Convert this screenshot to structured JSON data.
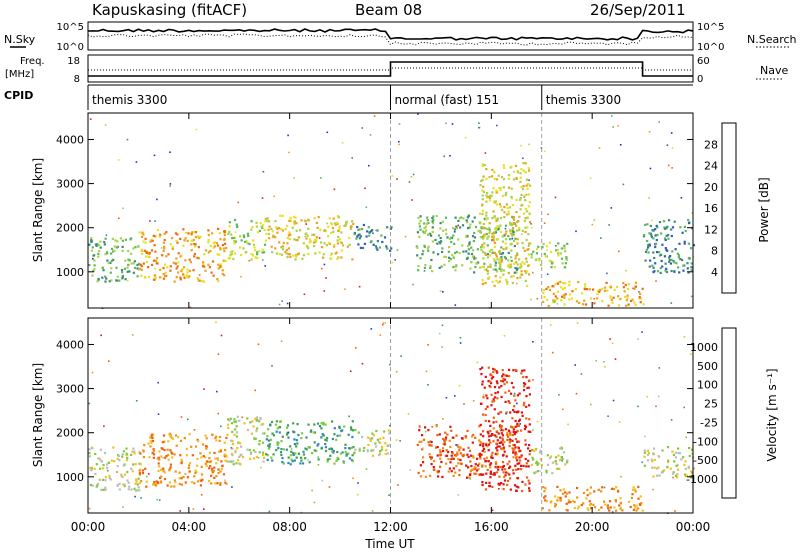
{
  "header": {
    "station": "Kapuskasing (fitACF)",
    "beam": "Beam 08",
    "date": "26/Sep/2011"
  },
  "top_panels": {
    "nsky_label": "N.Sky",
    "nsearch_label": "N.Search",
    "sky_ticks": [
      "10^5",
      "10^0"
    ],
    "sky_right_ticks": [
      "10^5",
      "10^0"
    ],
    "freq_label_1": "Freq.",
    "freq_label_2": "[MHz]",
    "freq_ticks": [
      "18",
      "8"
    ],
    "nave_ticks": [
      "60",
      "0"
    ],
    "nave_label": "Nave",
    "cpid_label": "CPID",
    "cpid_segments": [
      {
        "label": "themis 3300",
        "start_hour": 0,
        "end_hour": 12
      },
      {
        "label": "normal (fast) 151",
        "start_hour": 12,
        "end_hour": 18
      },
      {
        "label": "themis 3300",
        "start_hour": 18,
        "end_hour": 24
      }
    ]
  },
  "x_axis": {
    "label": "Time UT",
    "ticks": [
      "00:00",
      "04:00",
      "08:00",
      "12:00",
      "16:00",
      "20:00",
      "00:00"
    ]
  },
  "chart_data": [
    {
      "type": "heatmap",
      "name": "power",
      "ylabel": "Slant Range [km]",
      "xlim": [
        0,
        24
      ],
      "ylim": [
        180,
        4600
      ],
      "yticks": [
        "4000",
        "3000",
        "2000",
        "1000"
      ],
      "colorbar_label": "Power [dB]",
      "colorbar_ticks": [
        "28",
        "24",
        "20",
        "16",
        "12",
        "8",
        "4"
      ],
      "colors": [
        "#1f2fd6",
        "#2e5fb3",
        "#3a8a78",
        "#5cb85c",
        "#a8d34a",
        "#e8e020",
        "#f0a020",
        "#f06a10",
        "#e02010"
      ],
      "blobs": [
        {
          "t0": 0.0,
          "t1": 2.0,
          "r0": 800,
          "r1": 1800,
          "level": 3
        },
        {
          "t0": 2.0,
          "t1": 5.5,
          "r0": 800,
          "r1": 2000,
          "level": 6
        },
        {
          "t0": 5.5,
          "t1": 7.0,
          "r0": 1300,
          "r1": 2200,
          "level": 4
        },
        {
          "t0": 7.0,
          "t1": 10.5,
          "r0": 1300,
          "r1": 2300,
          "level": 5
        },
        {
          "t0": 10.5,
          "t1": 12.0,
          "r0": 1500,
          "r1": 2100,
          "level": 2
        },
        {
          "t0": 13.0,
          "t1": 17.0,
          "r0": 1000,
          "r1": 2300,
          "level": 3
        },
        {
          "t0": 15.5,
          "t1": 17.5,
          "r0": 700,
          "r1": 3500,
          "level": 5
        },
        {
          "t0": 17.5,
          "t1": 19.0,
          "r0": 1100,
          "r1": 1700,
          "level": 4
        },
        {
          "t0": 18.0,
          "t1": 22.0,
          "r0": 250,
          "r1": 800,
          "level": 6
        },
        {
          "t0": 22.0,
          "t1": 24.0,
          "r0": 1000,
          "r1": 2200,
          "level": 2
        }
      ]
    },
    {
      "type": "heatmap",
      "name": "velocity",
      "ylabel": "Slant Range [km]",
      "xlim": [
        0,
        24
      ],
      "ylim": [
        180,
        4600
      ],
      "yticks": [
        "4000",
        "3000",
        "2000",
        "1000"
      ],
      "colorbar_label": "Velocity [m s⁻¹]",
      "colorbar_ticks": [
        "1000",
        "500",
        "100",
        "25",
        "-25",
        "-100",
        "-500",
        "-1000"
      ],
      "colors": [
        "#2040c0",
        "#2e8ab0",
        "#3aa050",
        "#7ccb3c",
        "#bdbdbd",
        "#f5c020",
        "#f59010",
        "#f06010",
        "#e01010"
      ],
      "blobs": [
        {
          "t0": 0.0,
          "t1": 2.0,
          "r0": 700,
          "r1": 1700,
          "level": 4
        },
        {
          "t0": 2.0,
          "t1": 5.5,
          "r0": 800,
          "r1": 2000,
          "level": 6
        },
        {
          "t0": 5.5,
          "t1": 7.0,
          "r0": 1300,
          "r1": 2400,
          "level": 4
        },
        {
          "t0": 7.0,
          "t1": 10.5,
          "r0": 1300,
          "r1": 2300,
          "level": 2
        },
        {
          "t0": 10.5,
          "t1": 12.0,
          "r0": 1500,
          "r1": 2100,
          "level": 4
        },
        {
          "t0": 13.0,
          "t1": 17.0,
          "r0": 1000,
          "r1": 2200,
          "level": 7
        },
        {
          "t0": 15.5,
          "t1": 17.5,
          "r0": 700,
          "r1": 3500,
          "level": 8
        },
        {
          "t0": 17.5,
          "t1": 19.0,
          "r0": 1100,
          "r1": 1700,
          "level": 4
        },
        {
          "t0": 18.0,
          "t1": 22.0,
          "r0": 250,
          "r1": 800,
          "level": 6
        },
        {
          "t0": 22.0,
          "t1": 24.0,
          "r0": 1000,
          "r1": 1700,
          "level": 4
        }
      ]
    }
  ]
}
